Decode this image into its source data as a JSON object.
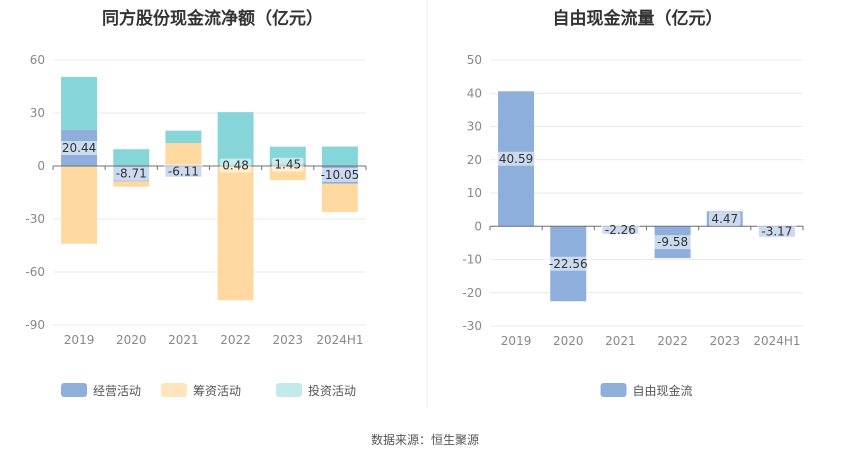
{
  "source_text": "数据来源：恒生聚源",
  "colors": {
    "operating": "#8eaedb",
    "financing": "#ffd9a0",
    "investing": "#86d5d9",
    "fcf": "#8eaedb",
    "grid": "#e6e9f0",
    "axis_text": "#888888",
    "label_text": "#333333",
    "divider": "#eeeeee"
  },
  "chart_data": [
    {
      "id": "left",
      "type": "bar",
      "stacked": true,
      "title": "同方股份现金流净额（亿元）",
      "categories": [
        "2019",
        "2020",
        "2021",
        "2022",
        "2023",
        "2024H1"
      ],
      "ylim": [
        -90,
        60
      ],
      "yticks": [
        60,
        30,
        0,
        -30,
        -60,
        -90
      ],
      "grid": true,
      "legend_position": "bottom-center",
      "series": [
        {
          "name": "经营活动",
          "color_key": "operating",
          "values": [
            20.44,
            -8.71,
            -6.11,
            0.48,
            1.45,
            -10.05
          ]
        },
        {
          "name": "筹资活动",
          "color_key": "financing",
          "values": [
            -44,
            -3,
            13,
            -76,
            -8,
            -16
          ]
        },
        {
          "name": "投资活动",
          "color_key": "investing",
          "values": [
            30,
            9.5,
            7,
            30,
            9.5,
            11
          ]
        }
      ],
      "data_labels": [
        "20.44",
        "-8.71",
        "-6.11",
        "0.48",
        "1.45",
        "-10.05"
      ]
    },
    {
      "id": "right",
      "type": "bar",
      "title": "自由现金流量（亿元）",
      "categories": [
        "2019",
        "2020",
        "2021",
        "2022",
        "2023",
        "2024H1"
      ],
      "ylim": [
        -30,
        50
      ],
      "yticks": [
        50,
        40,
        30,
        20,
        10,
        0,
        -10,
        -20,
        -30
      ],
      "grid": true,
      "legend_position": "bottom-center",
      "series": [
        {
          "name": "自由现金流",
          "color_key": "fcf",
          "values": [
            40.59,
            -22.56,
            -2.26,
            -9.58,
            4.47,
            -3.17
          ]
        }
      ],
      "data_labels": [
        "40.59",
        "-22.56",
        "-2.26",
        "-9.58",
        "4.47",
        "-3.17"
      ]
    }
  ]
}
